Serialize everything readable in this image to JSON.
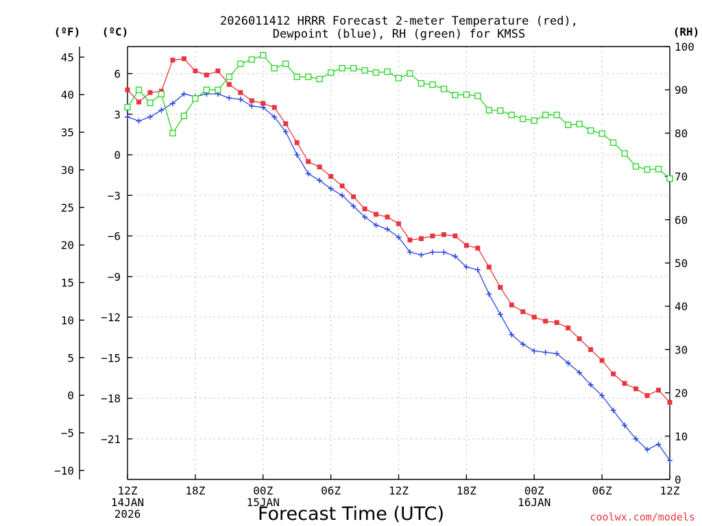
{
  "chart_data": {
    "type": "line",
    "title_lines": [
      "2026011412 HRRR Forecast 2-meter Temperature (red),",
      "Dewpoint (blue), RH (green) for KMSS"
    ],
    "xlabel": "Forecast Time (UTC)",
    "credit": "coolwx.com/models",
    "unit_labels": {
      "fahrenheit": "(ºF)",
      "celsius": "(ºC)",
      "rh": "(RH)"
    },
    "x_range_hours": [
      0,
      48
    ],
    "x_ticks": [
      {
        "hour": 0,
        "lines": [
          "12Z",
          "14JAN",
          "2026"
        ]
      },
      {
        "hour": 6,
        "lines": [
          "18Z"
        ]
      },
      {
        "hour": 12,
        "lines": [
          "00Z",
          "15JAN"
        ]
      },
      {
        "hour": 18,
        "lines": [
          "06Z"
        ]
      },
      {
        "hour": 24,
        "lines": [
          "12Z"
        ]
      },
      {
        "hour": 30,
        "lines": [
          "18Z"
        ]
      },
      {
        "hour": 36,
        "lines": [
          "00Z",
          "16JAN"
        ]
      },
      {
        "hour": 42,
        "lines": [
          "06Z"
        ]
      },
      {
        "hour": 48,
        "lines": [
          "12Z"
        ]
      }
    ],
    "celsius_axis": {
      "range": [
        -24,
        8
      ],
      "ticks": [
        6,
        3,
        0,
        -3,
        -6,
        -9,
        -12,
        -15,
        -18,
        -21
      ],
      "tick_labels": [
        "6",
        "3",
        "0",
        "−3",
        "−6",
        "−9",
        "−12",
        "−15",
        "−18",
        "−21"
      ]
    },
    "fahrenheit_axis": {
      "ticks": [
        45,
        40,
        35,
        30,
        25,
        20,
        15,
        10,
        5,
        0,
        -5,
        -10
      ],
      "tick_labels": [
        "45",
        "40",
        "35",
        "30",
        "25",
        "20",
        "15",
        "10",
        "5",
        "0",
        "−5",
        "−10"
      ]
    },
    "rh_axis": {
      "range": [
        0,
        100
      ],
      "ticks": [
        100,
        90,
        80,
        70,
        60,
        50,
        40,
        30,
        20,
        10,
        0
      ],
      "tick_labels": [
        "100",
        "90",
        "80",
        "70",
        "60",
        "50",
        "40",
        "30",
        "20",
        "10",
        "0"
      ]
    },
    "x_hours": [
      0,
      1,
      2,
      3,
      4,
      5,
      6,
      7,
      8,
      9,
      10,
      11,
      12,
      13,
      14,
      15,
      16,
      17,
      18,
      19,
      20,
      21,
      22,
      23,
      24,
      25,
      26,
      27,
      28,
      29,
      30,
      31,
      32,
      33,
      34,
      35,
      36,
      37,
      38,
      39,
      40,
      41,
      42,
      43,
      44,
      45,
      46,
      47,
      48
    ],
    "series": [
      {
        "name": "2-meter Temperature",
        "unit": "C",
        "color": "#e8363d",
        "marker": "filled-square",
        "values": [
          4.8,
          3.9,
          4.6,
          4.7,
          7.0,
          7.1,
          6.2,
          5.9,
          6.2,
          5.2,
          4.6,
          4.0,
          3.8,
          3.5,
          2.3,
          0.9,
          -0.5,
          -0.9,
          -1.6,
          -2.3,
          -3.1,
          -4.0,
          -4.4,
          -4.6,
          -5.1,
          -6.3,
          -6.2,
          -6.0,
          -5.9,
          -6.0,
          -6.7,
          -6.9,
          -8.3,
          -9.8,
          -11.1,
          -11.6,
          -12.0,
          -12.3,
          -12.4,
          -12.8,
          -13.6,
          -14.4,
          -15.2,
          -16.2,
          -16.9,
          -17.3,
          -17.8,
          -17.4,
          -18.3
        ]
      },
      {
        "name": "Dewpoint",
        "unit": "C",
        "color": "#2a45e2",
        "marker": "plus",
        "values": [
          2.8,
          2.5,
          2.8,
          3.3,
          3.8,
          4.5,
          4.3,
          4.5,
          4.5,
          4.2,
          4.1,
          3.6,
          3.5,
          2.8,
          1.7,
          0.0,
          -1.4,
          -1.9,
          -2.5,
          -3.0,
          -3.8,
          -4.6,
          -5.2,
          -5.5,
          -6.1,
          -7.2,
          -7.4,
          -7.2,
          -7.2,
          -7.5,
          -8.3,
          -8.5,
          -10.3,
          -11.8,
          -13.3,
          -14.0,
          -14.5,
          -14.6,
          -14.7,
          -15.4,
          -16.1,
          -17.0,
          -17.8,
          -18.9,
          -20.0,
          -21.0,
          -21.8,
          -21.4,
          -22.6
        ]
      },
      {
        "name": "RH",
        "unit": "%",
        "color": "#22d322",
        "marker": "open-square",
        "values": [
          86,
          90,
          87,
          89,
          80,
          84,
          88,
          90,
          90,
          93,
          96,
          97,
          98,
          95,
          96,
          93,
          93,
          92.5,
          94,
          95,
          95,
          94.5,
          94,
          94.2,
          92.7,
          93.8,
          91.5,
          91.2,
          90.2,
          88.8,
          88.9,
          88.6,
          85.3,
          85.2,
          84.2,
          83.3,
          82.9,
          84.2,
          84.2,
          81.9,
          82.1,
          80.6,
          79.9,
          77.8,
          75.3,
          72.3,
          71.6,
          71.7,
          69.5
        ]
      }
    ]
  }
}
